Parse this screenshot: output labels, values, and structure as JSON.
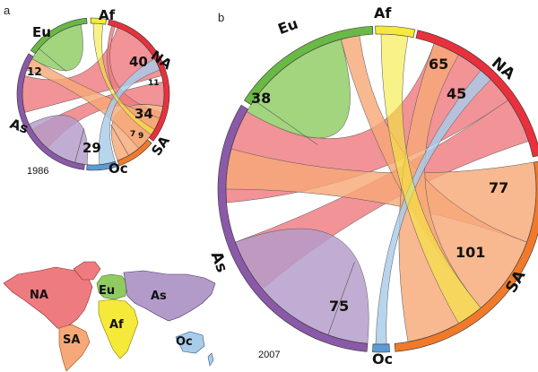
{
  "colors": {
    "Af": "#f5e93a",
    "NA": "#e8313d",
    "SA": "#f07a2a",
    "Oc": "#5b9bd5",
    "As": "#8a5aa8",
    "Eu": "#6ab845",
    "NA_fill": "#ee7b80",
    "SA_fill": "#f6a878",
    "As_fill": "#b39bc9",
    "Eu_fill": "#8fcb61",
    "Oc_fill": "#a8ccea"
  },
  "panel_a": {
    "letter": "a",
    "year": "1986",
    "regions": {
      "Eu": "Eu",
      "Af": "Af",
      "NA": "NA",
      "As": "As",
      "SA": "SA",
      "Oc": "Oc"
    },
    "values": {
      "v40": "40",
      "v12": "12",
      "v11": "11",
      "v34": "34",
      "v7": "7",
      "v9": "9",
      "v29": "29"
    }
  },
  "panel_b": {
    "letter": "b",
    "year": "2007",
    "regions": {
      "Eu": "Eu",
      "Af": "Af",
      "NA": "NA",
      "As": "As",
      "SA": "SA",
      "Oc": "Oc"
    },
    "values": {
      "v38": "38",
      "v65": "65",
      "v45": "45",
      "v77": "77",
      "v101": "101",
      "v75": "75"
    }
  },
  "map": {
    "labels": {
      "NA": "NA",
      "Eu": "Eu",
      "As": "As",
      "Af": "Af",
      "SA": "SA",
      "Oc": "Oc"
    }
  }
}
